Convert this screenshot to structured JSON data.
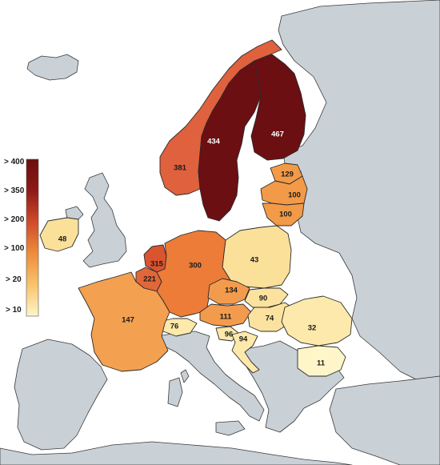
{
  "legend": {
    "labels": [
      "> 400",
      "> 350",
      "> 200",
      "> 100",
      "> 20",
      "> 10"
    ],
    "colors": [
      "#6b0f12",
      "#8e1a16",
      "#cf4b2b",
      "#ee8c3a",
      "#f8c36c",
      "#fef6c8"
    ]
  },
  "countries": [
    {
      "name": "Finland",
      "value": "467",
      "color": "#6b0f12"
    },
    {
      "name": "Sweden",
      "value": "434",
      "color": "#6b0f12"
    },
    {
      "name": "Norway",
      "value": "381",
      "color": "#e0613d"
    },
    {
      "name": "Estonia",
      "value": "129",
      "color": "#f29a48"
    },
    {
      "name": "Latvia",
      "value": "100",
      "color": "#f29a48"
    },
    {
      "name": "Lithuania",
      "value": "100",
      "color": "#f29a48"
    },
    {
      "name": "Ireland",
      "value": "48",
      "color": "#fbe09a"
    },
    {
      "name": "Poland",
      "value": "43",
      "color": "#fbe09a"
    },
    {
      "name": "Netherlands",
      "value": "315",
      "color": "#d9542f"
    },
    {
      "name": "Germany",
      "value": "300",
      "color": "#ec7c38"
    },
    {
      "name": "Belgium",
      "value": "221",
      "color": "#e0673a"
    },
    {
      "name": "Czechia",
      "value": "134",
      "color": "#f39b4d"
    },
    {
      "name": "France",
      "value": "147",
      "color": "#f3a050"
    },
    {
      "name": "Slovakia",
      "value": "90",
      "color": "#fbe39f"
    },
    {
      "name": "Austria",
      "value": "111",
      "color": "#f39b4d"
    },
    {
      "name": "Hungary",
      "value": "74",
      "color": "#fbe39f"
    },
    {
      "name": "Switzerland",
      "value": "76",
      "color": "#fce9ab"
    },
    {
      "name": "Slovenia",
      "value": "96",
      "color": "#fce9ab"
    },
    {
      "name": "Croatia",
      "value": "94",
      "color": "#fce9ab"
    },
    {
      "name": "Romania",
      "value": "32",
      "color": "#fce9ab"
    },
    {
      "name": "Bulgaria",
      "value": "11",
      "color": "#fef6c8"
    }
  ]
}
